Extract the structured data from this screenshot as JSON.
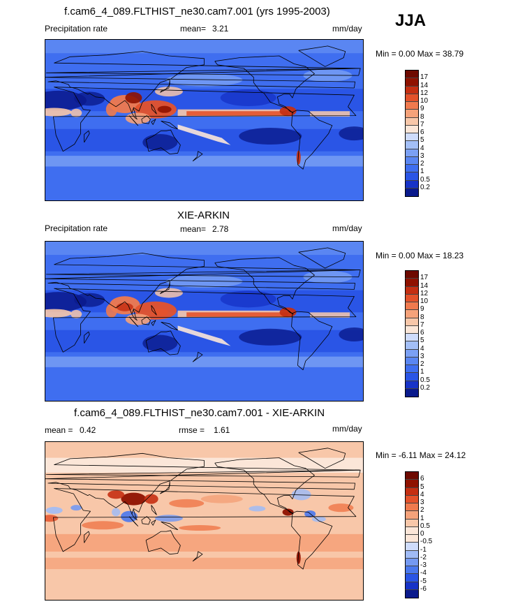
{
  "season": "JJA",
  "units": "mm/day",
  "panels": [
    {
      "title": "f.cam6_4_089.FLTHIST_ne30.cam7.001 (yrs 1995-2003)",
      "left_label": "Precipitation rate",
      "stat_label": "mean=",
      "stat_value": "3.21",
      "units": "mm/day",
      "minmax": "Min =   0.00 Max =  38.79",
      "colorbar": [
        "17",
        "14",
        "12",
        "10",
        "9",
        "8",
        "7",
        "6",
        "5",
        "4",
        "3",
        "2",
        "1",
        "0.5",
        "0.2"
      ]
    },
    {
      "title": "XIE-ARKIN",
      "left_label": "Precipitation rate",
      "stat_label": "mean=",
      "stat_value": "2.78",
      "units": "mm/day",
      "minmax": "Min =   0.00 Max =  18.23",
      "colorbar": [
        "17",
        "14",
        "12",
        "10",
        "9",
        "8",
        "7",
        "6",
        "5",
        "4",
        "3",
        "2",
        "1",
        "0.5",
        "0.2"
      ]
    },
    {
      "title": "f.cam6_4_089.FLTHIST_ne30.cam7.001 - XIE-ARKIN",
      "left_label": "mean =",
      "left_value": "0.42",
      "stat_label": "rmse =",
      "stat_value": "1.61",
      "units": "mm/day",
      "minmax": "Min =  -6.11 Max =  24.12",
      "colorbar": [
        "6",
        "5",
        "4",
        "3",
        "2",
        "1",
        "0.5",
        "0",
        "-0.5",
        "-1",
        "-2",
        "-3",
        "-4",
        "-5",
        "-6"
      ]
    }
  ],
  "colors": {
    "abs_scale": [
      "#0a1a8c",
      "#1733c8",
      "#2a55e6",
      "#3f6ef0",
      "#5a86f2",
      "#7ba0f4",
      "#a3bff7",
      "#cfdcfb",
      "#fbe6d8",
      "#f8c7a9",
      "#f5a27a",
      "#f07a4e",
      "#e4522b",
      "#c52f12",
      "#8f1200",
      "#6e0a00"
    ],
    "diff_scale": [
      "#0a1a8c",
      "#1733c8",
      "#2a55e6",
      "#4a78ee",
      "#7499f2",
      "#a0bbf6",
      "#cfdcfb",
      "#fbe6d8",
      "#fbe6d8",
      "#f8c7a9",
      "#f5a27a",
      "#f07a4e",
      "#e4522b",
      "#c52f12",
      "#8f1200",
      "#6e0a00"
    ],
    "land_line": "#000000"
  }
}
